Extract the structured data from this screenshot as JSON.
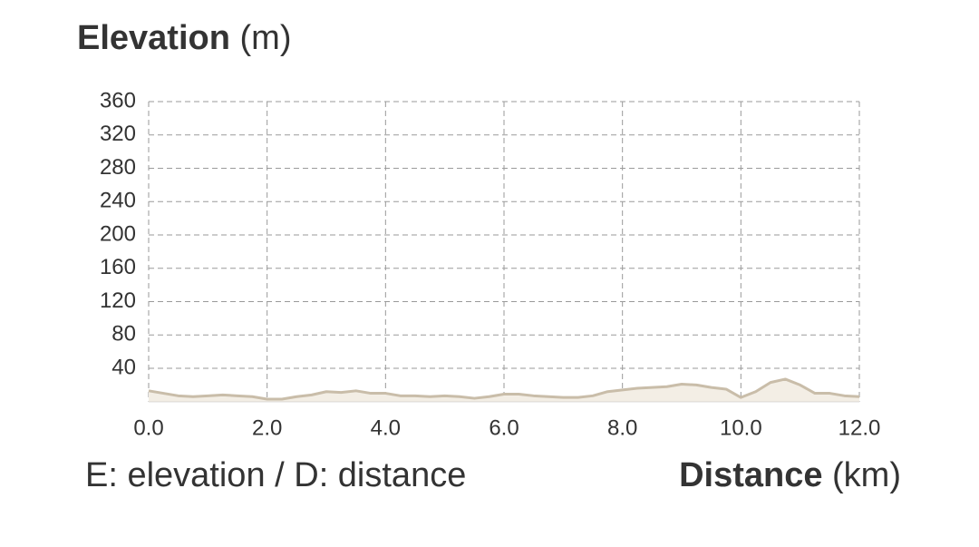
{
  "chart_data": {
    "type": "area",
    "y_label": {
      "name": "Elevation",
      "unit": "(m)"
    },
    "x_label": {
      "name": "Distance",
      "unit": "(km)"
    },
    "legend_note": "E: elevation / D: distance",
    "x": [
      0,
      0.25,
      0.5,
      0.75,
      1,
      1.25,
      1.5,
      1.75,
      2,
      2.25,
      2.5,
      2.75,
      3,
      3.25,
      3.5,
      3.75,
      4,
      4.25,
      4.5,
      4.75,
      5,
      5.25,
      5.5,
      5.75,
      6,
      6.25,
      6.5,
      6.75,
      7,
      7.25,
      7.5,
      7.75,
      8,
      8.25,
      8.5,
      8.75,
      9,
      9.25,
      9.5,
      9.75,
      10,
      10.25,
      10.5,
      10.75,
      11,
      11.25,
      11.5,
      11.75,
      12
    ],
    "values": [
      13,
      10,
      7,
      6,
      7,
      8,
      7,
      6,
      3,
      3,
      6,
      8,
      12,
      11,
      13,
      10,
      10,
      7,
      7,
      6,
      7,
      6,
      4,
      6,
      9,
      9,
      7,
      6,
      5,
      5,
      7,
      12,
      14,
      16,
      17,
      18,
      21,
      20,
      17,
      15,
      5,
      12,
      23,
      27,
      20,
      10,
      10,
      7,
      6
    ],
    "color": "#c9bda9",
    "fill": "#f3eee5",
    "xlim": [
      0,
      12
    ],
    "xticks": [
      {
        "value": 0,
        "label": "0.0"
      },
      {
        "value": 2,
        "label": "2.0"
      },
      {
        "value": 4,
        "label": "4.0"
      },
      {
        "value": 6,
        "label": "6.0"
      },
      {
        "value": 8,
        "label": "8.0"
      },
      {
        "value": 10,
        "label": "10.0"
      },
      {
        "value": 12,
        "label": "12.0"
      }
    ],
    "ylim": [
      0,
      360
    ],
    "yticks": [
      40,
      80,
      120,
      160,
      200,
      240,
      280,
      320,
      360
    ],
    "grid": true
  }
}
